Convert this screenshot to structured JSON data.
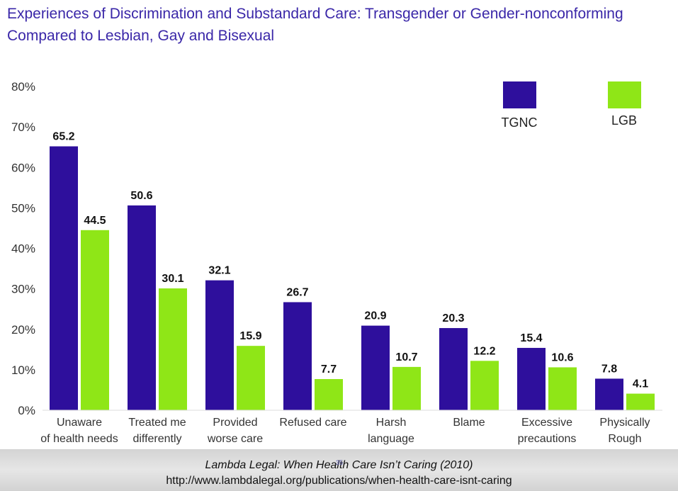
{
  "title": "Experiences of Discrimination and Substandard Care: Transgender or Gender-nonconforming Compared to Lesbian, Gay and Bisexual",
  "footer": {
    "citation": "Lambda Legal: When Health Care Isn’t Caring (2010)",
    "url": "http://www.lambdalegal.org/publications/when-health-care-isnt-caring",
    "page_number": "35"
  },
  "chart_data": {
    "type": "bar",
    "title": "Experiences of Discrimination and Substandard Care: Transgender or Gender-nonconforming Compared to Lesbian, Gay and Bisexual",
    "categories": [
      [
        "Unaware",
        "of health needs"
      ],
      [
        "Treated me",
        "differently"
      ],
      [
        "Provided",
        "worse care"
      ],
      [
        "Refused care"
      ],
      [
        "Harsh",
        "language"
      ],
      [
        "Blame"
      ],
      [
        "Excessive",
        "precautions"
      ],
      [
        "Physically",
        "Rough"
      ]
    ],
    "series": [
      {
        "name": "TGNC",
        "color": "#2e0f9c",
        "values": [
          65.2,
          50.6,
          32.1,
          26.7,
          20.9,
          20.3,
          15.4,
          7.8
        ]
      },
      {
        "name": "LGB",
        "color": "#8fe617",
        "values": [
          44.5,
          30.1,
          15.9,
          7.7,
          10.7,
          12.2,
          10.6,
          4.1
        ]
      }
    ],
    "data_labels": {
      "TGNC": [
        "65.2",
        "50.6",
        "32.1",
        "26.7",
        "20.9",
        "20.3",
        "15.4",
        "7.8"
      ],
      "LGB": [
        "44.5",
        "30.1",
        "15.9",
        "7.7",
        "10.7",
        "12.2",
        "10.6",
        "4.1"
      ]
    },
    "yticks": [
      "0%",
      "10%",
      "20%",
      "30%",
      "40%",
      "50%",
      "60%",
      "70%",
      "80%"
    ],
    "ylim": [
      0,
      80
    ],
    "xlabel": "",
    "ylabel": "",
    "legend_position": "top-right",
    "grid": false
  }
}
